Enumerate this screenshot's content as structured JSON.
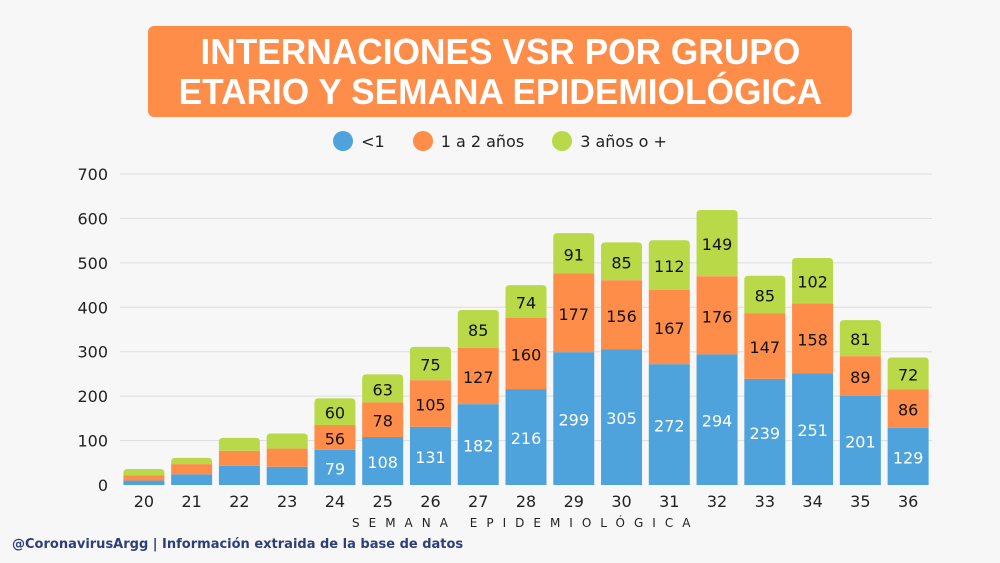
{
  "header": {
    "title": "INTERNACIONES VSR POR GRUPO\nETARIO Y SEMANA EPIDEMIOLÓGICA"
  },
  "footer": {
    "credit": "@CoronavirusArgg | Información extraida de la base de datos"
  },
  "colors": {
    "background": "#f7f7f7",
    "header": "#ff8d4a",
    "under1": "#4fa3dc",
    "one_to_two": "#ff8d4a",
    "three_plus": "#b9d948",
    "gridline": "#dddddd",
    "footer_text": "#2d3e7a"
  },
  "chart_data": {
    "type": "bar",
    "stacked": true,
    "title": "INTERNACIONES VSR POR GRUPO ETARIO Y SEMANA EPIDEMIOLÓGICA",
    "xlabel": "SEMANA EPIDEMIOLÓGICA",
    "ylabel": "",
    "ylim": [
      0,
      700
    ],
    "yticks": [
      0,
      100,
      200,
      300,
      400,
      500,
      600,
      700
    ],
    "grid": true,
    "legend_position": "top-center",
    "categories": [
      "20",
      "21",
      "22",
      "23",
      "24",
      "25",
      "26",
      "27",
      "28",
      "29",
      "30",
      "31",
      "32",
      "33",
      "34",
      "35",
      "36"
    ],
    "series": [
      {
        "name": "<1",
        "color": "#4fa3dc",
        "values": [
          10,
          24,
          43,
          41,
          79,
          108,
          131,
          182,
          216,
          299,
          305,
          272,
          294,
          239,
          251,
          201,
          129
        ],
        "labeled": [
          false,
          false,
          false,
          false,
          true,
          true,
          true,
          true,
          true,
          true,
          true,
          true,
          true,
          true,
          true,
          true,
          true
        ]
      },
      {
        "name": "1 a 2 años",
        "color": "#ff8d4a",
        "values": [
          12,
          23,
          34,
          41,
          56,
          78,
          105,
          127,
          160,
          177,
          156,
          167,
          176,
          147,
          158,
          89,
          86
        ],
        "labeled": [
          false,
          false,
          false,
          false,
          true,
          true,
          true,
          true,
          true,
          true,
          true,
          true,
          true,
          true,
          true,
          true,
          true
        ]
      },
      {
        "name": "3 años o +",
        "color": "#b9d948",
        "values": [
          14,
          14,
          29,
          34,
          60,
          63,
          75,
          85,
          74,
          91,
          85,
          112,
          149,
          85,
          102,
          81,
          72
        ],
        "labeled": [
          false,
          false,
          false,
          false,
          true,
          true,
          true,
          true,
          true,
          true,
          true,
          true,
          true,
          true,
          true,
          true,
          true
        ]
      }
    ]
  }
}
